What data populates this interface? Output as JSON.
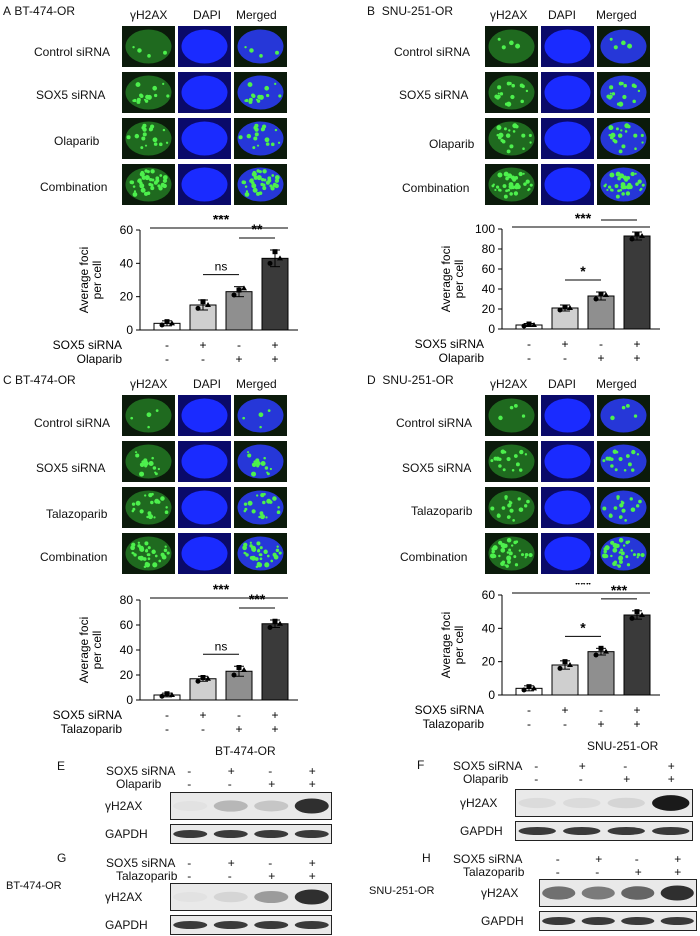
{
  "panels": [
    {
      "letter": "A",
      "cell_line": "BT-474-OR",
      "channels": [
        "γH2AX",
        "DAPI",
        "Merged"
      ],
      "rows": [
        "Control siRNA",
        "SOX5 siRNA",
        "Olaparib",
        "Combination"
      ]
    },
    {
      "letter": "B",
      "cell_line": "SNU-251-OR",
      "channels": [
        "γH2AX",
        "DAPI",
        "Merged"
      ],
      "rows": [
        "Control siRNA",
        "SOX5 siRNA",
        "Olaparib",
        "Combination"
      ]
    },
    {
      "letter": "C",
      "cell_line": "BT-474-OR",
      "channels": [
        "γH2AX",
        "DAPI",
        "Merged"
      ],
      "rows": [
        "Control siRNA",
        "SOX5 siRNA",
        "Talazoparib",
        "Combination"
      ]
    },
    {
      "letter": "D",
      "cell_line": "SNU-251-OR",
      "channels": [
        "γH2AX",
        "DAPI",
        "Merged"
      ],
      "rows": [
        "Control siRNA",
        "SOX5 siRNA",
        "Talazoparib",
        "Combination"
      ]
    }
  ],
  "chart_data": [
    {
      "panel": "A",
      "type": "bar",
      "ylabel": "Average foci per cell",
      "ylim": [
        0,
        60
      ],
      "yticks": [
        0,
        20,
        40,
        60
      ],
      "values": [
        4,
        15,
        23,
        43
      ],
      "errors": [
        1.5,
        3,
        3,
        5
      ],
      "points": [
        [
          3,
          5,
          4
        ],
        [
          13,
          17,
          15
        ],
        [
          21,
          24,
          25
        ],
        [
          40,
          47,
          43
        ]
      ],
      "treatments": [
        {
          "label": "SOX5 siRNA",
          "signs": [
            "-",
            "+",
            "-",
            "+"
          ]
        },
        {
          "label": "Olaparib",
          "signs": [
            "-",
            "-",
            "+",
            "+"
          ]
        }
      ],
      "significance": [
        {
          "from": 2,
          "to": 3,
          "label": "ns"
        },
        {
          "from": 3,
          "to": 4,
          "label": "**"
        },
        {
          "from": 1,
          "to": 4,
          "label": "***"
        }
      ]
    },
    {
      "panel": "B",
      "type": "bar",
      "ylabel": "Average foci per cell",
      "ylim": [
        0,
        100
      ],
      "yticks": [
        0,
        20,
        40,
        60,
        80,
        100
      ],
      "values": [
        4,
        21,
        33,
        93
      ],
      "errors": [
        1.5,
        3,
        4,
        4
      ],
      "points": [
        [
          3,
          5,
          4
        ],
        [
          19,
          22,
          21
        ],
        [
          30,
          35,
          34
        ],
        [
          90,
          95,
          93
        ]
      ],
      "treatments": [
        {
          "label": "SOX5 siRNA",
          "signs": [
            "-",
            "+",
            "-",
            "+"
          ]
        },
        {
          "label": "Olaparib",
          "signs": [
            "-",
            "-",
            "+",
            "+"
          ]
        }
      ],
      "significance": [
        {
          "from": 2,
          "to": 3,
          "label": "*"
        },
        {
          "from": 3,
          "to": 4,
          "label": "***"
        },
        {
          "from": 1,
          "to": 4,
          "label": "***"
        }
      ]
    },
    {
      "panel": "C",
      "type": "bar",
      "ylabel": "Average foci per cell",
      "ylim": [
        0,
        80
      ],
      "yticks": [
        0,
        20,
        40,
        60,
        80
      ],
      "values": [
        4,
        17,
        23,
        61
      ],
      "errors": [
        1.5,
        2,
        4,
        3
      ],
      "points": [
        [
          3,
          5,
          4
        ],
        [
          15,
          18,
          17
        ],
        [
          20,
          26,
          24
        ],
        [
          58,
          63,
          61
        ]
      ],
      "treatments": [
        {
          "label": "SOX5 siRNA",
          "signs": [
            "-",
            "+",
            "-",
            "+"
          ]
        },
        {
          "label": "Talazoparib",
          "signs": [
            "-",
            "-",
            "+",
            "+"
          ]
        }
      ],
      "significance": [
        {
          "from": 2,
          "to": 3,
          "label": "ns"
        },
        {
          "from": 3,
          "to": 4,
          "label": "***"
        },
        {
          "from": 1,
          "to": 4,
          "label": "***"
        }
      ]
    },
    {
      "panel": "D",
      "type": "bar",
      "ylabel": "Average foci per cell",
      "ylim": [
        0,
        60
      ],
      "yticks": [
        0,
        20,
        40,
        60
      ],
      "values": [
        4,
        18,
        26,
        48
      ],
      "errors": [
        1.5,
        2.5,
        2,
        2.5
      ],
      "points": [
        [
          3,
          5,
          4
        ],
        [
          16,
          20,
          18
        ],
        [
          24,
          28,
          26
        ],
        [
          46,
          50,
          48
        ]
      ],
      "treatments": [
        {
          "label": "SOX5 siRNA",
          "signs": [
            "-",
            "+",
            "-",
            "+"
          ]
        },
        {
          "label": "Talazoparib",
          "signs": [
            "-",
            "-",
            "+",
            "+"
          ]
        }
      ],
      "significance": [
        {
          "from": 2,
          "to": 3,
          "label": "*"
        },
        {
          "from": 3,
          "to": 4,
          "label": "***"
        },
        {
          "from": 1,
          "to": 4,
          "label": "***"
        }
      ]
    }
  ],
  "blots": [
    {
      "letter": "E",
      "cell_line": "BT-474-OR",
      "treatments": [
        {
          "label": "SOX5 siRNA",
          "signs": [
            "-",
            "+",
            "-",
            "+"
          ]
        },
        {
          "label": "Olaparib",
          "signs": [
            "-",
            "-",
            "+",
            "+"
          ]
        }
      ],
      "rows": [
        "γH2AX",
        "GAPDH"
      ],
      "h2ax_intensity": [
        0.02,
        0.22,
        0.15,
        0.85
      ]
    },
    {
      "letter": "F",
      "cell_line": "SNU-251-OR",
      "treatments": [
        {
          "label": "SOX5 siRNA",
          "signs": [
            "-",
            "+",
            "-",
            "+"
          ]
        },
        {
          "label": "Olaparib",
          "signs": [
            "-",
            "-",
            "+",
            "+"
          ]
        }
      ],
      "rows": [
        "γH2AX",
        "GAPDH"
      ],
      "h2ax_intensity": [
        0.05,
        0.05,
        0.08,
        0.95
      ]
    },
    {
      "letter": "G",
      "cell_line": "BT-474-OR",
      "treatments": [
        {
          "label": "SOX5 siRNA",
          "signs": [
            "-",
            "+",
            "-",
            "+"
          ]
        },
        {
          "label": "Talazoparib",
          "signs": [
            "-",
            "-",
            "+",
            "+"
          ]
        }
      ],
      "rows": [
        "γH2AX",
        "GAPDH"
      ],
      "h2ax_intensity": [
        0.02,
        0.08,
        0.35,
        0.85
      ]
    },
    {
      "letter": "H",
      "cell_line": "SNU-251-OR",
      "treatments": [
        {
          "label": "SOX5 siRNA",
          "signs": [
            "-",
            "+",
            "-",
            "+"
          ]
        },
        {
          "label": "Talazoparib",
          "signs": [
            "-",
            "-",
            "+",
            "+"
          ]
        }
      ],
      "rows": [
        "γH2AX",
        "GAPDH"
      ],
      "h2ax_intensity": [
        0.55,
        0.5,
        0.6,
        0.85
      ]
    }
  ],
  "colors": {
    "bar_fills": [
      "#ffffff",
      "#cfcfcf",
      "#8f8f8f",
      "#3a3a3a"
    ],
    "foci": "#3ddc3d",
    "dapi": "#1a2bff"
  }
}
